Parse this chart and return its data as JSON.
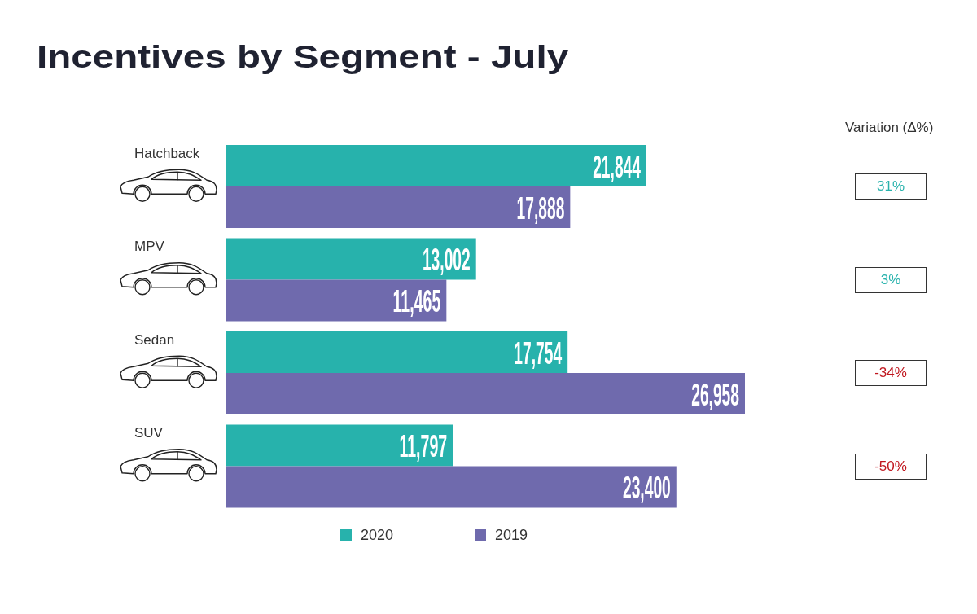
{
  "chart_data": {
    "type": "bar",
    "orientation": "horizontal",
    "title": "Incentives by Segment - July",
    "categories": [
      "Hatchback",
      "MPV",
      "Sedan",
      "SUV"
    ],
    "series": [
      {
        "name": "2020",
        "color": "#27b2ac",
        "values": [
          21844,
          13002,
          17754,
          11797
        ],
        "value_labels": [
          "21,844",
          "13,002",
          "17,754",
          "11,797"
        ]
      },
      {
        "name": "2019",
        "color": "#6f6aad",
        "values": [
          17888,
          11465,
          26958,
          23400
        ],
        "value_labels": [
          "17,888",
          "11,465",
          "26,958",
          "23,400"
        ]
      }
    ],
    "legend": "bottom",
    "tick_labels": "y",
    "annotations": [
      "Variation (Δ%)",
      "31%",
      "3%",
      "-34%",
      "-50%"
    ]
  }
}
